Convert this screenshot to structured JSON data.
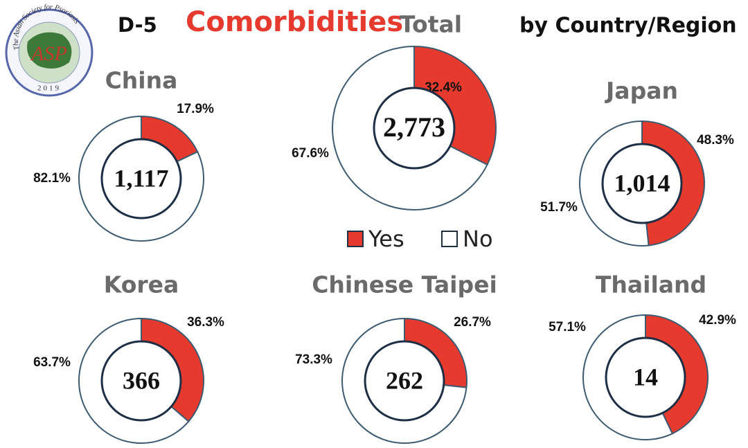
{
  "header": {
    "code": "D-5",
    "topic": "Comorbidities",
    "scope": "by Country/Region"
  },
  "logo": {
    "ring_text": "The Asian Society for Psoriasis",
    "abbr": "ASP",
    "year": "2019"
  },
  "chart_data": [
    {
      "type": "donut",
      "title": "Total",
      "center_label": "2,773",
      "categories": [
        "Yes",
        "No"
      ],
      "values": [
        32.4,
        67.6
      ],
      "value_labels": [
        "32.4%",
        "67.6%"
      ],
      "colors": [
        "#e63a2e",
        "#ffffff"
      ],
      "legend": "bottom"
    },
    {
      "type": "donut",
      "title": "China",
      "center_label": "1,117",
      "categories": [
        "Yes",
        "No"
      ],
      "values": [
        17.9,
        82.1
      ],
      "value_labels": [
        "17.9%",
        "82.1%"
      ],
      "colors": [
        "#e63a2e",
        "#ffffff"
      ]
    },
    {
      "type": "donut",
      "title": "Japan",
      "center_label": "1,014",
      "categories": [
        "Yes",
        "No"
      ],
      "values": [
        48.3,
        51.7
      ],
      "value_labels": [
        "48.3%",
        "51.7%"
      ],
      "colors": [
        "#e63a2e",
        "#ffffff"
      ]
    },
    {
      "type": "donut",
      "title": "Korea",
      "center_label": "366",
      "categories": [
        "Yes",
        "No"
      ],
      "values": [
        36.3,
        63.7
      ],
      "value_labels": [
        "36.3%",
        "63.7%"
      ],
      "colors": [
        "#e63a2e",
        "#ffffff"
      ]
    },
    {
      "type": "donut",
      "title": "Chinese Taipei",
      "center_label": "262",
      "categories": [
        "Yes",
        "No"
      ],
      "values": [
        26.7,
        73.3
      ],
      "value_labels": [
        "26.7%",
        "73.3%"
      ],
      "colors": [
        "#e63a2e",
        "#ffffff"
      ]
    },
    {
      "type": "donut",
      "title": "Thailand",
      "center_label": "14",
      "categories": [
        "Yes",
        "No"
      ],
      "values": [
        42.9,
        57.1
      ],
      "value_labels": [
        "42.9%",
        "57.1%"
      ],
      "colors": [
        "#e63a2e",
        "#ffffff"
      ]
    }
  ]
}
